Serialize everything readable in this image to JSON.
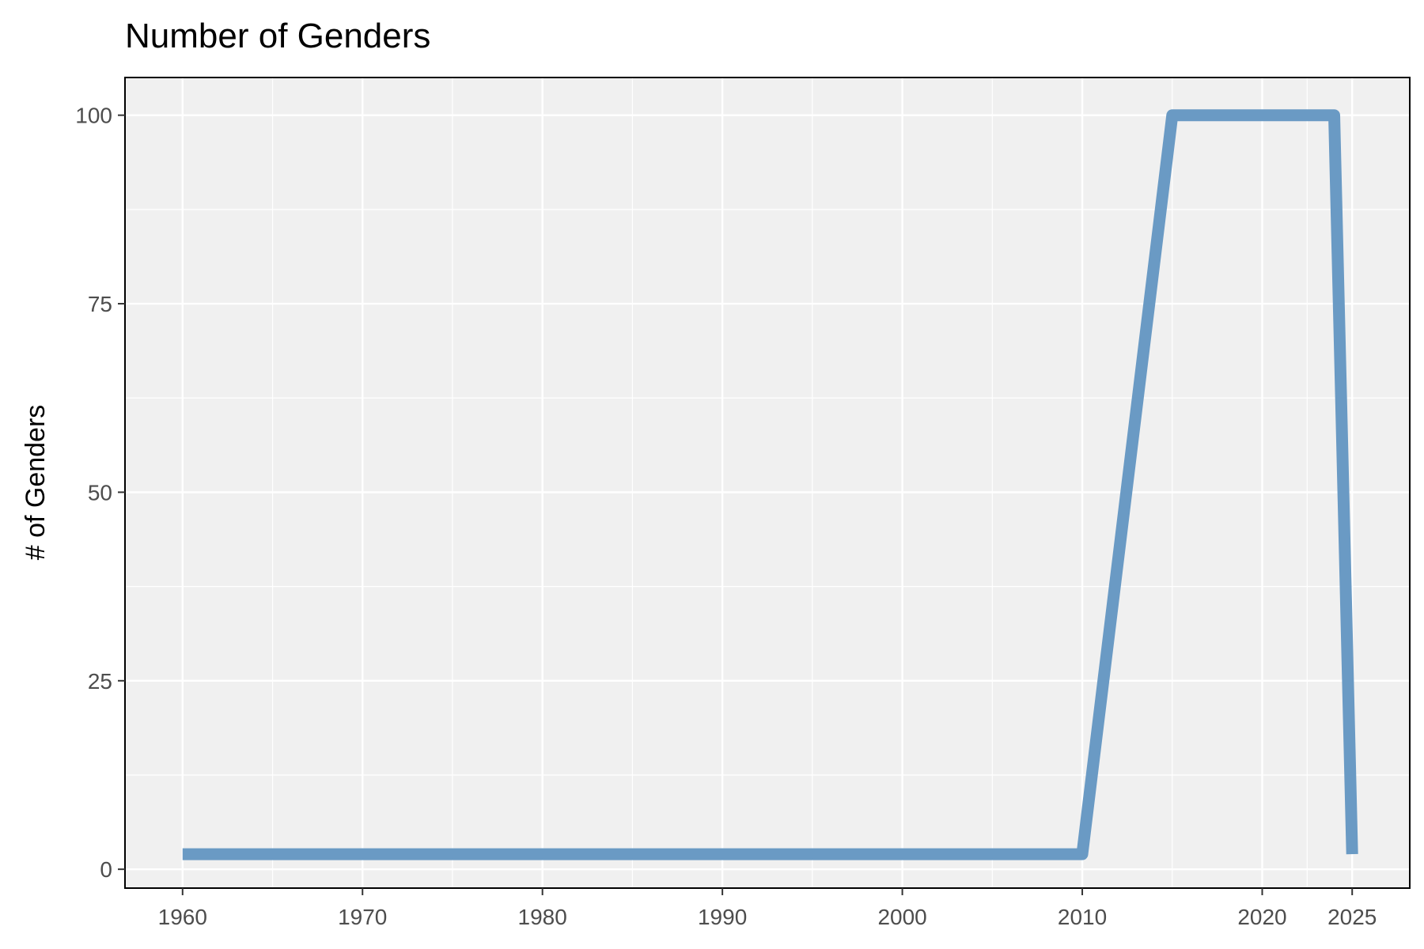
{
  "chart_data": {
    "type": "line",
    "title": "Number of Genders",
    "xlabel": "",
    "ylabel": "# of Genders",
    "x": [
      1960,
      2010,
      2015,
      2024,
      2025
    ],
    "series": [
      {
        "values": [
          2,
          2,
          100,
          100,
          2
        ]
      }
    ],
    "xlim": [
      1956.8,
      2028.2
    ],
    "ylim": [
      -2.5,
      105
    ],
    "x_ticks": [
      "1960",
      "1970",
      "1980",
      "1990",
      "2000",
      "2010",
      "2020",
      "2025"
    ],
    "y_ticks": [
      "0",
      "25",
      "50",
      "75",
      "100"
    ],
    "grid": true,
    "legend": "none",
    "colors": {
      "line": "#6a9ac4",
      "panel": "#f0f0f0",
      "grid": "#ffffff",
      "border": "#000000"
    }
  }
}
